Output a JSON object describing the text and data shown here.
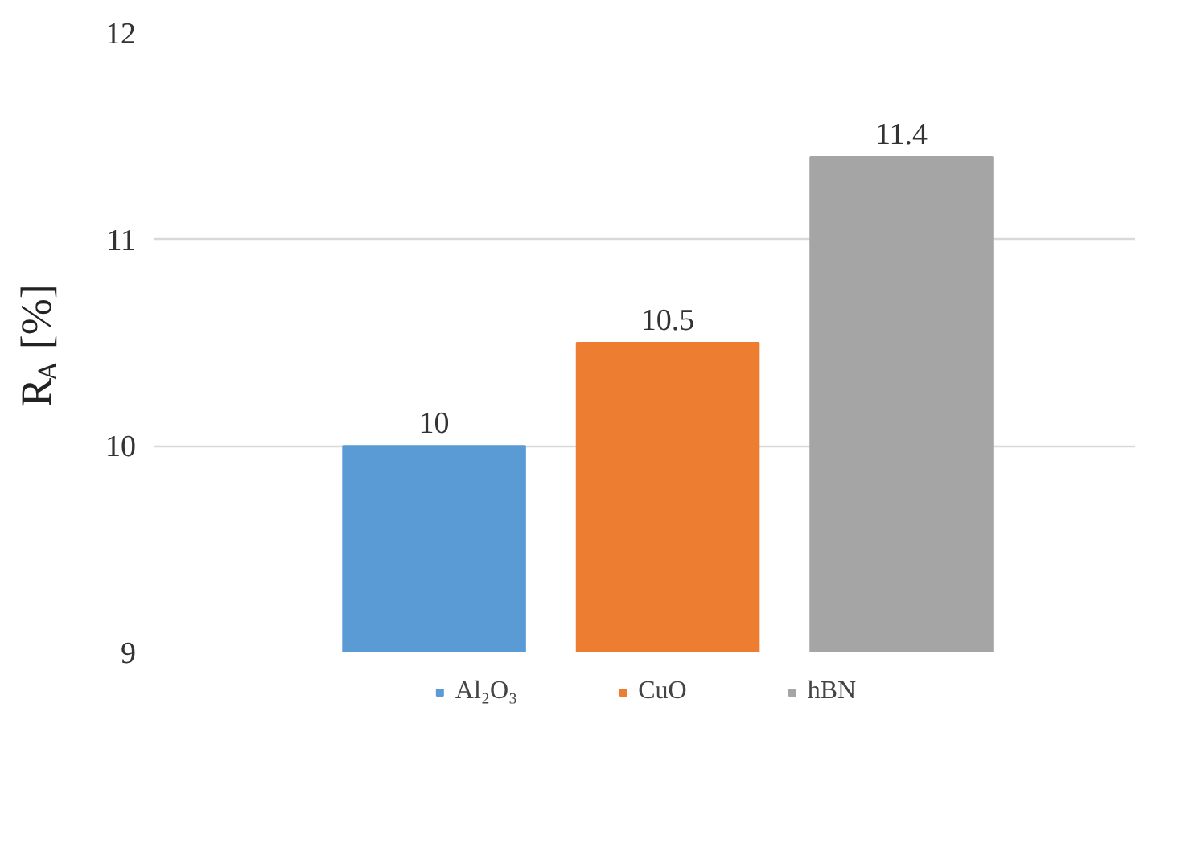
{
  "chart_data": {
    "type": "bar",
    "categories": [
      null
    ],
    "ylabel": "R$_{A}$ [%]",
    "ylim": [
      9,
      12
    ],
    "yticks": [
      9,
      10,
      11,
      12
    ],
    "grid": "y",
    "legend": "bottom",
    "tick_labels": "y",
    "data_labels": true,
    "series": [
      {
        "name": "Al₂O₃",
        "color": "#5b9bd5",
        "values": [
          10
        ]
      },
      {
        "name": "CuO",
        "color": "#ed7d31",
        "values": [
          10.5
        ]
      },
      {
        "name": "hBN",
        "color": "#a5a5a5",
        "values": [
          11.4
        ]
      }
    ]
  }
}
